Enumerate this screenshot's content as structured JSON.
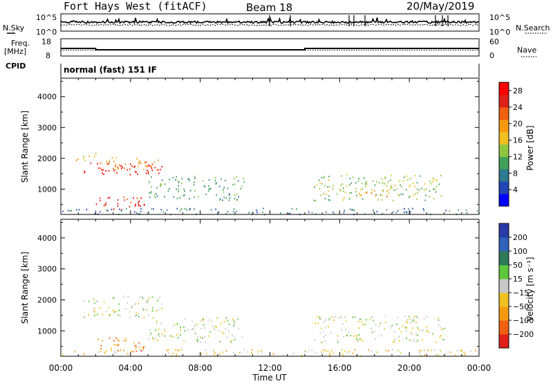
{
  "header": {
    "station": "Fort Hays West (fitACF)",
    "beam": "Beam 18",
    "date": "20/May/2019"
  },
  "top_panels": {
    "noise": {
      "left_label": "N.Sky",
      "right_label": "N.Search",
      "left_ticks": [
        "10^5",
        "10^0"
      ],
      "right_ticks": [
        "10^5",
        "10^0"
      ]
    },
    "freq": {
      "left_label_1": "Freq.",
      "left_label_2": "[MHz]",
      "right_label": "Nave",
      "left_ticks": [
        "18",
        "8"
      ],
      "right_ticks": [
        "60",
        "0"
      ]
    },
    "cpid_label": "CPID",
    "cpid_text": "normal (fast) 151 IF"
  },
  "chart_data": [
    {
      "type": "heatmap",
      "name": "power",
      "ylabel": "Slant Range [km]",
      "xlabel": "",
      "ylim": [
        180,
        4600
      ],
      "yticks": [
        1000,
        2000,
        3000,
        4000
      ],
      "colorbar_label": "Power [dB]",
      "colorbar_ticks": [
        4,
        8,
        12,
        16,
        20,
        24,
        28
      ],
      "colorbar_range": [
        0,
        30
      ],
      "colors": [
        "#0000ff",
        "#2346b4",
        "#2e7a8e",
        "#41a05a",
        "#8fc63f",
        "#f0c020",
        "#f59a10",
        "#f06010",
        "#e0201a",
        "#ff0000"
      ],
      "regions": [
        {
          "t0": 1.3,
          "t1": 5.8,
          "r0": 1450,
          "r1": 1900,
          "level": 9
        },
        {
          "t0": 1.8,
          "t1": 5.6,
          "r0": 1650,
          "r1": 2050,
          "level": 6
        },
        {
          "t0": 1.9,
          "t1": 4.6,
          "r0": 450,
          "r1": 800,
          "level": 8
        },
        {
          "t0": 3.0,
          "t1": 4.8,
          "r0": 350,
          "r1": 600,
          "level": 9
        },
        {
          "t0": 0.8,
          "t1": 2.0,
          "r0": 1950,
          "r1": 2250,
          "level": 5
        },
        {
          "t0": 5.0,
          "t1": 10.5,
          "r0": 650,
          "r1": 1450,
          "level": 3
        },
        {
          "t0": 14.5,
          "t1": 22.0,
          "r0": 650,
          "r1": 1500,
          "level": 4
        },
        {
          "t0": 17.0,
          "t1": 18.8,
          "r0": 700,
          "r1": 1000,
          "level": 6
        },
        {
          "t0": 0.0,
          "t1": 24.0,
          "r0": 200,
          "r1": 400,
          "level": 2
        }
      ]
    },
    {
      "type": "heatmap",
      "name": "velocity",
      "ylabel": "Slant Range [km]",
      "xlabel": "Time UT",
      "ylim": [
        180,
        4600
      ],
      "yticks": [
        1000,
        2000,
        3000,
        4000
      ],
      "x_tick_labels": [
        "00:00",
        "04:00",
        "08:00",
        "12:00",
        "16:00",
        "20:00",
        "00:00"
      ],
      "x_ticks": [
        0,
        4,
        8,
        12,
        16,
        20,
        24
      ],
      "colorbar_label": "Velocity [m s⁻¹]",
      "colorbar_ticks": [
        "200",
        "100",
        "50",
        "15",
        "−15",
        "−50",
        "−100",
        "−200"
      ],
      "colors": [
        "#2a3aa8",
        "#2f62b8",
        "#2e7a5a",
        "#5dc83a",
        "#c8c8c8",
        "#f0c020",
        "#f59a10",
        "#f06010",
        "#e0201a"
      ],
      "regions": [
        {
          "t0": 1.3,
          "t1": 5.8,
          "r0": 1450,
          "r1": 2150,
          "level": 4
        },
        {
          "t0": 2.0,
          "t1": 4.6,
          "r0": 450,
          "r1": 800,
          "level": 6
        },
        {
          "t0": 3.0,
          "t1": 4.8,
          "r0": 350,
          "r1": 600,
          "level": 7
        },
        {
          "t0": 5.0,
          "t1": 10.5,
          "r0": 650,
          "r1": 1450,
          "level": 4
        },
        {
          "t0": 14.5,
          "t1": 22.0,
          "r0": 650,
          "r1": 1500,
          "level": 4
        },
        {
          "t0": 0.0,
          "t1": 24.0,
          "r0": 200,
          "r1": 420,
          "level": 5
        }
      ]
    }
  ]
}
